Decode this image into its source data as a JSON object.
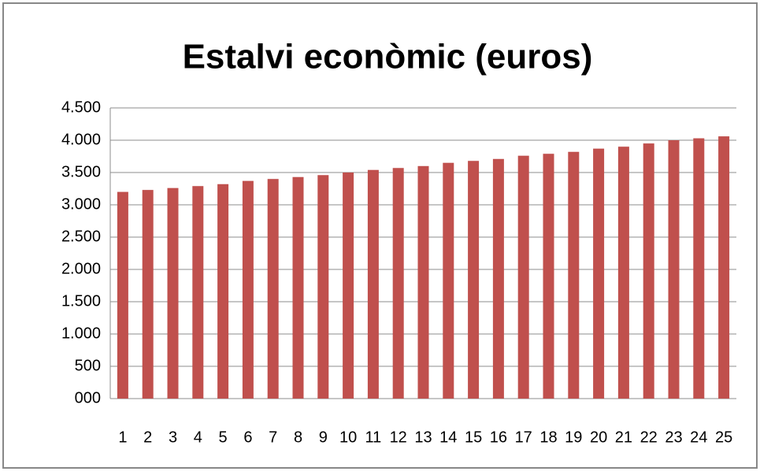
{
  "chart_data": {
    "type": "bar",
    "title": "Estalvi econòmic (euros)",
    "categories": [
      "1",
      "2",
      "3",
      "4",
      "5",
      "6",
      "7",
      "8",
      "9",
      "10",
      "11",
      "12",
      "13",
      "14",
      "15",
      "16",
      "17",
      "18",
      "19",
      "20",
      "21",
      "22",
      "23",
      "24",
      "25"
    ],
    "values": [
      3200,
      3230,
      3260,
      3290,
      3320,
      3370,
      3400,
      3430,
      3460,
      3500,
      3540,
      3570,
      3600,
      3650,
      3680,
      3710,
      3760,
      3790,
      3820,
      3870,
      3900,
      3950,
      4000,
      4030,
      4060
    ],
    "color": "#c0504d",
    "ylim": [
      0,
      4500
    ],
    "yticks": [
      {
        "value": 0,
        "label": "000"
      },
      500,
      {
        "value": 1000,
        "label": "1.000"
      },
      {
        "value": 1500,
        "label": "1.500"
      },
      {
        "value": 2000,
        "label": "2.000"
      },
      {
        "value": 2500,
        "label": "2.500"
      },
      {
        "value": 3000,
        "label": "3.000"
      },
      {
        "value": 3500,
        "label": "3.500"
      },
      {
        "value": 4000,
        "label": "4.000"
      },
      {
        "value": 4500,
        "label": "4.500"
      }
    ],
    "grid": true
  }
}
